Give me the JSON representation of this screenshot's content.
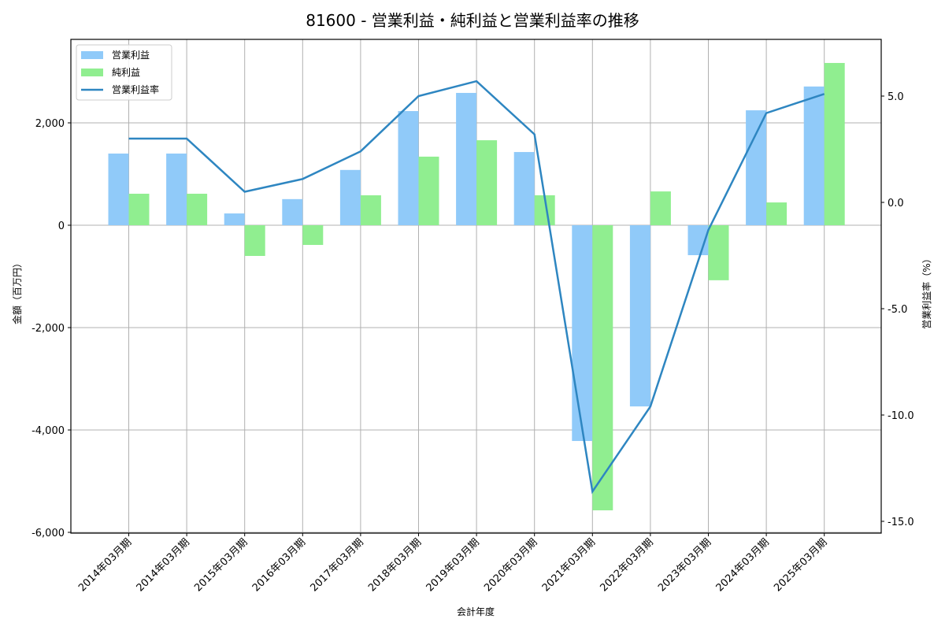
{
  "chart_data": {
    "type": "bar+line",
    "title": "81600 - 営業利益・純利益と営業利益率の推移",
    "xlabel": "会計年度",
    "ylabel": "金額（百万円）",
    "y2label": "営業利益率（%）",
    "categories": [
      "2014年03月期",
      "2014年03月期",
      "2015年03月期",
      "2016年03月期",
      "2017年03月期",
      "2018年03月期",
      "2019年03月期",
      "2020年03月期",
      "2021年03月期",
      "2022年03月期",
      "2023年03月期",
      "2024年03月期",
      "2025年03月期"
    ],
    "series": [
      {
        "name": "営業利益",
        "type": "bar",
        "axis": "left",
        "color": "#90caf9",
        "values": [
          1400,
          1400,
          230,
          510,
          1080,
          2230,
          2585,
          1430,
          -4215,
          -3540,
          -585,
          2245,
          2710
        ]
      },
      {
        "name": "純利益",
        "type": "bar",
        "axis": "left",
        "color": "#90ee90",
        "values": [
          615,
          615,
          -600,
          -385,
          585,
          1340,
          1660,
          585,
          -5570,
          660,
          -1075,
          445,
          3170
        ]
      },
      {
        "name": "営業利益率",
        "type": "line",
        "axis": "right",
        "color": "#2e86c1",
        "values": [
          3.0,
          3.0,
          0.5,
          1.1,
          2.4,
          5.0,
          5.7,
          3.2,
          -13.6,
          -9.6,
          -1.3,
          4.2,
          5.1
        ]
      }
    ],
    "ylim": [
      -6000,
      3600
    ],
    "y2lim": [
      -15.5,
      8.0
    ],
    "yticks": [
      2000,
      0,
      -2000,
      -4000,
      -6000
    ],
    "ytick_labels": [
      "2,000",
      "0",
      "-2,000",
      "-4,000",
      "-6,000"
    ],
    "y2ticks": [
      5.0,
      0.0,
      -5.0,
      -10.0,
      -15.0
    ],
    "y2tick_labels": [
      "5.0",
      "0.0",
      "-5.0",
      "-10.0",
      "-15.0"
    ],
    "grid": true,
    "legend_position": "upper left"
  }
}
